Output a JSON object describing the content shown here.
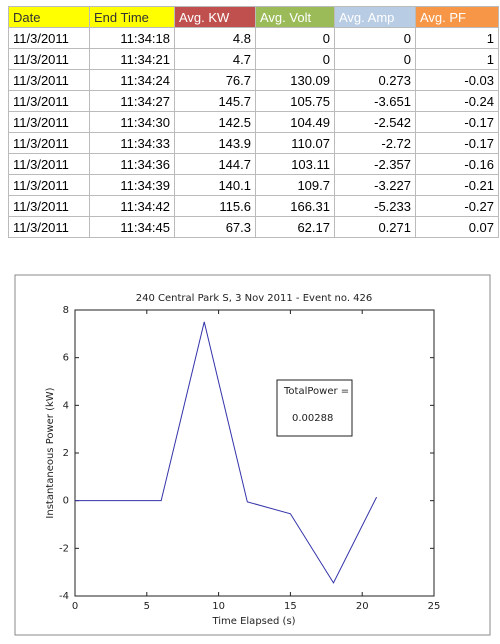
{
  "table": {
    "columns": [
      {
        "label": "Date",
        "color": "#ffff00",
        "text": "#333333"
      },
      {
        "label": "End Time",
        "color": "#ffff00",
        "text": "#333333"
      },
      {
        "label": "Avg. KW",
        "color": "#c0504d",
        "text": "#ffffff"
      },
      {
        "label": "Avg. Volt",
        "color": "#9bbb59",
        "text": "#ffffff"
      },
      {
        "label": "Avg. Amp",
        "color": "#b8cce4",
        "text": "#ffffff"
      },
      {
        "label": "Avg. PF",
        "color": "#f79646",
        "text": "#ffffff"
      }
    ],
    "rows": [
      [
        "11/3/2011",
        "11:34:18",
        4.8,
        0,
        0,
        1
      ],
      [
        "11/3/2011",
        "11:34:21",
        4.7,
        0,
        0,
        1
      ],
      [
        "11/3/2011",
        "11:34:24",
        76.7,
        130.09,
        0.273,
        -0.03
      ],
      [
        "11/3/2011",
        "11:34:27",
        145.7,
        105.75,
        -3.651,
        -0.24
      ],
      [
        "11/3/2011",
        "11:34:30",
        142.5,
        104.49,
        -2.542,
        -0.17
      ],
      [
        "11/3/2011",
        "11:34:33",
        143.9,
        110.07,
        -2.72,
        -0.17
      ],
      [
        "11/3/2011",
        "11:34:36",
        144.7,
        103.11,
        -2.357,
        -0.16
      ],
      [
        "11/3/2011",
        "11:34:39",
        140.1,
        109.7,
        -3.227,
        -0.21
      ],
      [
        "11/3/2011",
        "11:34:42",
        115.6,
        166.31,
        -5.233,
        -0.27
      ],
      [
        "11/3/2011",
        "11:34:45",
        67.3,
        62.17,
        0.271,
        0.07
      ]
    ]
  },
  "chart_data": {
    "type": "line",
    "title": "240 Central Park S, 3 Nov 2011 - Event no. 426",
    "x_label": "Time Elapsed (s)",
    "y_label": "Instantaneous Power (kW)",
    "x": [
      0,
      3,
      6,
      9,
      12,
      15,
      18,
      21
    ],
    "series": [
      {
        "color": "#3333aa",
        "values": [
          0,
          0,
          0,
          7.5,
          -0.05,
          -0.55,
          -3.45,
          0.15
        ]
      }
    ],
    "xlim": [
      0,
      25
    ],
    "xticks": [
      0,
      5,
      10,
      15,
      20,
      25
    ],
    "ylim": [
      -4,
      8
    ],
    "yticks": [
      -4,
      -2,
      0,
      2,
      4,
      6,
      8
    ],
    "annotation": [
      "TotalPower =",
      "0.00288"
    ]
  }
}
